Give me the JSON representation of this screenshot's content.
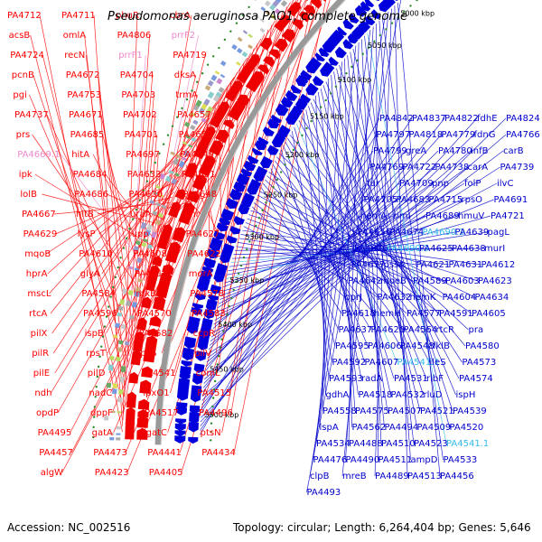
{
  "title": "Pseudomonas aeruginosa PAO1, complete genome",
  "footer": {
    "accession": "Accession: NC_002516",
    "summary": "Topology: circular; Length: 6,264,404 bp; Genes: 5,646"
  },
  "colors": {
    "forward_label": "#ff0000",
    "reverse_label": "#0000cc",
    "rna_forward": "#ee88cc",
    "rna_reverse": "#33bbee",
    "backbone": "#999999",
    "tick_dot": "#2a8a2a"
  },
  "kbp_marks": [
    "5500 kbp",
    "5450 kbp",
    "5400 kbp",
    "5350 kbp",
    "5300 kbp",
    "5250 kbp",
    "5200 kbp",
    "5150 kbp",
    "5100 kbp",
    "5050 kbp",
    "5000 kbp"
  ],
  "left_labels": [
    {
      "text": "PA4712",
      "kind": "cds"
    },
    {
      "text": "PA4711",
      "kind": "cds"
    },
    {
      "text": "phuR",
      "kind": "cds"
    },
    {
      "text": "cbrA",
      "kind": "cds"
    },
    {
      "text": "acsB",
      "kind": "cds"
    },
    {
      "text": "omlA",
      "kind": "cds"
    },
    {
      "text": "PA4806",
      "kind": "cds"
    },
    {
      "text": "prrF2",
      "kind": "rna"
    },
    {
      "text": "PA4724",
      "kind": "cds"
    },
    {
      "text": "recN",
      "kind": "cds"
    },
    {
      "text": "prrF1",
      "kind": "rna"
    },
    {
      "text": "PA4719",
      "kind": "cds"
    },
    {
      "text": "pcnB",
      "kind": "cds"
    },
    {
      "text": "PA4672",
      "kind": "cds"
    },
    {
      "text": "PA4704",
      "kind": "cds"
    },
    {
      "text": "dksA",
      "kind": "cds"
    },
    {
      "text": "pgi",
      "kind": "cds"
    },
    {
      "text": "PA4753",
      "kind": "cds"
    },
    {
      "text": "PA4703",
      "kind": "cds"
    },
    {
      "text": "trmA",
      "kind": "cds"
    },
    {
      "text": "PA4737",
      "kind": "cds"
    },
    {
      "text": "PA4671",
      "kind": "cds"
    },
    {
      "text": "PA4702",
      "kind": "cds"
    },
    {
      "text": "PA4657",
      "kind": "cds"
    },
    {
      "text": "prs",
      "kind": "cds"
    },
    {
      "text": "PA4685",
      "kind": "cds"
    },
    {
      "text": "PA4701",
      "kind": "cds"
    },
    {
      "text": "PA4650",
      "kind": "cds"
    },
    {
      "text": "PA4669.1",
      "kind": "rna"
    },
    {
      "text": "hitA",
      "kind": "cds"
    },
    {
      "text": "PA4697",
      "kind": "cds"
    },
    {
      "text": "PA4649",
      "kind": "cds"
    },
    {
      "text": "ipk",
      "kind": "cds"
    },
    {
      "text": "PA4684",
      "kind": "cds"
    },
    {
      "text": "PA4633",
      "kind": "cds"
    },
    {
      "text": "PA4651",
      "kind": "cds"
    },
    {
      "text": "lolB",
      "kind": "cds"
    },
    {
      "text": "PA4686",
      "kind": "cds"
    },
    {
      "text": "PA4630",
      "kind": "cds"
    },
    {
      "text": "PA4648",
      "kind": "cds"
    },
    {
      "text": "PA4667",
      "kind": "cds"
    },
    {
      "text": "hitB",
      "kind": "cds"
    },
    {
      "text": "uraA",
      "kind": "cds"
    },
    {
      "text": "phr",
      "kind": "cds"
    },
    {
      "text": "PA4629",
      "kind": "cds"
    },
    {
      "text": "lysP",
      "kind": "cds"
    },
    {
      "text": "upp",
      "kind": "cds"
    },
    {
      "text": "PA4627",
      "kind": "cds"
    },
    {
      "text": "mqoB",
      "kind": "cds"
    },
    {
      "text": "PA4610",
      "kind": "cds"
    },
    {
      "text": "PA4608",
      "kind": "cds"
    },
    {
      "text": "PA4622",
      "kind": "cds"
    },
    {
      "text": "hprA",
      "kind": "cds"
    },
    {
      "text": "glyA",
      "kind": "cds"
    },
    {
      "text": "PA4617",
      "kind": "cds"
    },
    {
      "text": "morA",
      "kind": "cds"
    },
    {
      "text": "mscL",
      "kind": "cds"
    },
    {
      "text": "PA4584",
      "kind": "cds"
    },
    {
      "text": "nfxB",
      "kind": "cds"
    },
    {
      "text": "PA4578",
      "kind": "cds"
    },
    {
      "text": "rtcA",
      "kind": "cds"
    },
    {
      "text": "PA4596",
      "kind": "cds"
    },
    {
      "text": "PA4570",
      "kind": "cds"
    },
    {
      "text": "PA4583",
      "kind": "cds"
    },
    {
      "text": "pilX",
      "kind": "cds"
    },
    {
      "text": "ispB",
      "kind": "cds"
    },
    {
      "text": "PA4582",
      "kind": "cds"
    },
    {
      "text": "ccpR",
      "kind": "cds"
    },
    {
      "text": "pilR",
      "kind": "cds"
    },
    {
      "text": "rpsT",
      "kind": "cds"
    },
    {
      "text": "pilS",
      "kind": "cds"
    },
    {
      "text": "pilV",
      "kind": "cds"
    },
    {
      "text": "pilE",
      "kind": "cds"
    },
    {
      "text": "pilD",
      "kind": "cds"
    },
    {
      "text": "PA4541",
      "kind": "cds"
    },
    {
      "text": "comL",
      "kind": "cds"
    },
    {
      "text": "ndh",
      "kind": "cds"
    },
    {
      "text": "nadC",
      "kind": "cds"
    },
    {
      "text": "lpxO1",
      "kind": "cds"
    },
    {
      "text": "PA4515",
      "kind": "cds"
    },
    {
      "text": "opdP",
      "kind": "cds"
    },
    {
      "text": "dppF",
      "kind": "cds"
    },
    {
      "text": "PA4517",
      "kind": "cds"
    },
    {
      "text": "PA4496",
      "kind": "cds"
    },
    {
      "text": "PA4495",
      "kind": "cds"
    },
    {
      "text": "gatA",
      "kind": "cds"
    },
    {
      "text": "gatC",
      "kind": "cds"
    },
    {
      "text": "ptsN",
      "kind": "cds"
    },
    {
      "text": "PA4457",
      "kind": "cds"
    },
    {
      "text": "PA4473",
      "kind": "cds"
    },
    {
      "text": "PA4441",
      "kind": "cds"
    },
    {
      "text": "PA4434",
      "kind": "cds"
    },
    {
      "text": "algW",
      "kind": "cds"
    },
    {
      "text": "PA4423",
      "kind": "cds"
    },
    {
      "text": "PA4405",
      "kind": "cds"
    }
  ],
  "right_labels": [
    {
      "text": "PA4842",
      "kind": "cds"
    },
    {
      "text": "PA4837",
      "kind": "cds"
    },
    {
      "text": "PA4822",
      "kind": "cds"
    },
    {
      "text": "fdhE",
      "kind": "cds"
    },
    {
      "text": "PA4824",
      "kind": "cds"
    },
    {
      "text": "PA4797",
      "kind": "cds"
    },
    {
      "text": "PA4818",
      "kind": "cds"
    },
    {
      "text": "PA4779",
      "kind": "cds"
    },
    {
      "text": "fdnG",
      "kind": "cds"
    },
    {
      "text": "PA4766",
      "kind": "cds"
    },
    {
      "text": "PA4799",
      "kind": "cds"
    },
    {
      "text": "greA",
      "kind": "cds"
    },
    {
      "text": "PA4780",
      "kind": "cds"
    },
    {
      "text": "infB",
      "kind": "cds"
    },
    {
      "text": "carB",
      "kind": "cds"
    },
    {
      "text": "PA4769",
      "kind": "cds"
    },
    {
      "text": "PA4722",
      "kind": "cds"
    },
    {
      "text": "PA4738",
      "kind": "cds"
    },
    {
      "text": "carA",
      "kind": "cds"
    },
    {
      "text": "PA4739",
      "kind": "cds"
    },
    {
      "text": "fur",
      "kind": "cds"
    },
    {
      "text": "PA4709",
      "kind": "cds"
    },
    {
      "text": "pnp",
      "kind": "cds"
    },
    {
      "text": "folP",
      "kind": "cds"
    },
    {
      "text": "ilvC",
      "kind": "cds"
    },
    {
      "text": "PA4705",
      "kind": "cds"
    },
    {
      "text": "PA4683",
      "kind": "cds"
    },
    {
      "text": "PA4715",
      "kind": "cds"
    },
    {
      "text": "rpsO",
      "kind": "cds"
    },
    {
      "text": "PA4691",
      "kind": "cds"
    },
    {
      "text": "hemA",
      "kind": "cds"
    },
    {
      "text": "rimI",
      "kind": "cds"
    },
    {
      "text": "PA4689",
      "kind": "cds"
    },
    {
      "text": "hmuV",
      "kind": "cds"
    },
    {
      "text": "PA4721",
      "kind": "cds"
    },
    {
      "text": "PA4656",
      "kind": "cds"
    },
    {
      "text": "PA4674",
      "kind": "cds"
    },
    {
      "text": "PA4690.2",
      "kind": "rna"
    },
    {
      "text": "PA4639",
      "kind": "cds"
    },
    {
      "text": "pagL",
      "kind": "cds"
    },
    {
      "text": "PA4676",
      "kind": "cds"
    },
    {
      "text": "PA4690.3",
      "kind": "rna"
    },
    {
      "text": "PA4625",
      "kind": "cds"
    },
    {
      "text": "PA4638",
      "kind": "cds"
    },
    {
      "text": "murI",
      "kind": "cds"
    },
    {
      "text": "PA4677",
      "kind": "cds"
    },
    {
      "text": "pssA",
      "kind": "cds"
    },
    {
      "text": "PA4621",
      "kind": "cds"
    },
    {
      "text": "PA4631",
      "kind": "cds"
    },
    {
      "text": "PA4612",
      "kind": "cds"
    },
    {
      "text": "PA4642",
      "kind": "cds"
    },
    {
      "text": "moeB",
      "kind": "cds"
    },
    {
      "text": "PA4589",
      "kind": "cds"
    },
    {
      "text": "PA4603",
      "kind": "cds"
    },
    {
      "text": "PA4623",
      "kind": "cds"
    },
    {
      "text": "oprJ",
      "kind": "cds"
    },
    {
      "text": "PA4632",
      "kind": "cds"
    },
    {
      "text": "hemK",
      "kind": "cds"
    },
    {
      "text": "PA4604",
      "kind": "cds"
    },
    {
      "text": "PA4634",
      "kind": "cds"
    },
    {
      "text": "PA4618",
      "kind": "cds"
    },
    {
      "text": "hemH",
      "kind": "cds"
    },
    {
      "text": "PA4577",
      "kind": "cds"
    },
    {
      "text": "PA4591",
      "kind": "cds"
    },
    {
      "text": "PA4605",
      "kind": "cds"
    },
    {
      "text": "PA4637",
      "kind": "cds"
    },
    {
      "text": "PA4620",
      "kind": "cds"
    },
    {
      "text": "PA4564",
      "kind": "cds"
    },
    {
      "text": "rtcR",
      "kind": "cds"
    },
    {
      "text": "pra",
      "kind": "cds"
    },
    {
      "text": "PA4595",
      "kind": "cds"
    },
    {
      "text": "PA4606",
      "kind": "cds"
    },
    {
      "text": "PA4548",
      "kind": "cds"
    },
    {
      "text": "fklB",
      "kind": "cds"
    },
    {
      "text": "PA4580",
      "kind": "cds"
    },
    {
      "text": "PA4592",
      "kind": "cds"
    },
    {
      "text": "PA4607",
      "kind": "cds"
    },
    {
      "text": "PA4541.1",
      "kind": "rna"
    },
    {
      "text": "ileS",
      "kind": "cds"
    },
    {
      "text": "PA4573",
      "kind": "cds"
    },
    {
      "text": "PA4593",
      "kind": "cds"
    },
    {
      "text": "radA",
      "kind": "cds"
    },
    {
      "text": "PA4531",
      "kind": "cds"
    },
    {
      "text": "ribF",
      "kind": "cds"
    },
    {
      "text": "PA4574",
      "kind": "cds"
    },
    {
      "text": "gdhA",
      "kind": "cds"
    },
    {
      "text": "PA4518",
      "kind": "cds"
    },
    {
      "text": "PA4532",
      "kind": "cds"
    },
    {
      "text": "rluD",
      "kind": "cds"
    },
    {
      "text": "ispH",
      "kind": "cds"
    },
    {
      "text": "PA4558",
      "kind": "cds"
    },
    {
      "text": "PA4575",
      "kind": "cds"
    },
    {
      "text": "PA4507",
      "kind": "cds"
    },
    {
      "text": "PA4521",
      "kind": "cds"
    },
    {
      "text": "PA4539",
      "kind": "cds"
    },
    {
      "text": "lspA",
      "kind": "cds"
    },
    {
      "text": "PA4562",
      "kind": "cds"
    },
    {
      "text": "PA4494",
      "kind": "cds"
    },
    {
      "text": "PA4509",
      "kind": "cds"
    },
    {
      "text": "PA4520",
      "kind": "cds"
    },
    {
      "text": "PA4534",
      "kind": "cds"
    },
    {
      "text": "PA4488",
      "kind": "cds"
    },
    {
      "text": "PA4510",
      "kind": "cds"
    },
    {
      "text": "PA4523",
      "kind": "cds"
    },
    {
      "text": "PA4541.1",
      "kind": "rna"
    },
    {
      "text": "PA4476",
      "kind": "cds"
    },
    {
      "text": "PA4490",
      "kind": "cds"
    },
    {
      "text": "PA4511",
      "kind": "cds"
    },
    {
      "text": "ampD",
      "kind": "cds"
    },
    {
      "text": "PA4533",
      "kind": "cds"
    },
    {
      "text": "clpB",
      "kind": "cds"
    },
    {
      "text": "mreB",
      "kind": "cds"
    },
    {
      "text": "PA4489",
      "kind": "cds"
    },
    {
      "text": "PA4513",
      "kind": "cds"
    },
    {
      "text": "PA4456",
      "kind": "cds"
    },
    {
      "text": "PA4493",
      "kind": "cds"
    }
  ]
}
